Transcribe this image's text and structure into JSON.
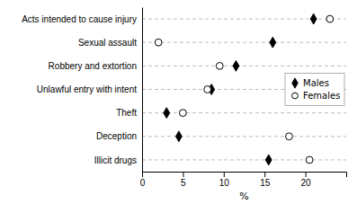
{
  "chart_data": {
    "type": "dot",
    "orientation": "horizontal",
    "categories": [
      "Acts intended to cause injury",
      "Sexual assault",
      "Robbery and extortion",
      "Unlawful entry with intent",
      "Theft",
      "Deception",
      "Illicit drugs"
    ],
    "series": [
      {
        "name": "Males",
        "color": "black",
        "marker": "diamond",
        "values": [
          21.0,
          16.0,
          11.5,
          8.5,
          3.0,
          4.5,
          15.5
        ]
      },
      {
        "name": "Females",
        "color": "white",
        "marker": "circle",
        "values": [
          23.0,
          2.0,
          9.5,
          8.0,
          5.0,
          18.0,
          20.5
        ]
      }
    ],
    "xlabel": "%",
    "xlim": [
      0,
      25
    ],
    "xticks": [
      0,
      5,
      10,
      15,
      20
    ],
    "grid": true,
    "legend": "right"
  }
}
